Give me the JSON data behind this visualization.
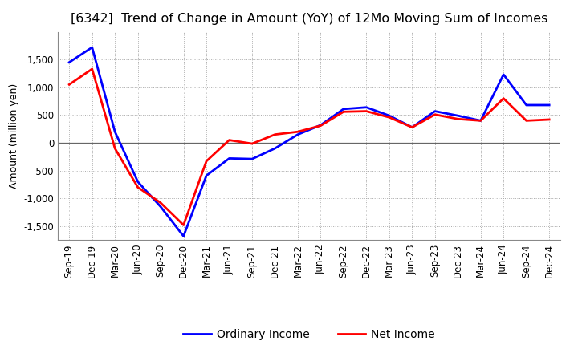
{
  "title": "[6342]  Trend of Change in Amount (YoY) of 12Mo Moving Sum of Incomes",
  "ylabel": "Amount (million yen)",
  "background_color": "#ffffff",
  "grid_color": "#aaaaaa",
  "x_labels": [
    "Sep-19",
    "Dec-19",
    "Mar-20",
    "Jun-20",
    "Sep-20",
    "Dec-20",
    "Mar-21",
    "Jun-21",
    "Sep-21",
    "Dec-21",
    "Mar-22",
    "Jun-22",
    "Sep-22",
    "Dec-22",
    "Mar-23",
    "Jun-23",
    "Sep-23",
    "Dec-23",
    "Mar-24",
    "Jun-24",
    "Sep-24",
    "Dec-24"
  ],
  "ordinary_income": [
    1450,
    1720,
    200,
    -700,
    -1150,
    -1680,
    -590,
    -280,
    -290,
    -100,
    150,
    320,
    610,
    640,
    490,
    280,
    570,
    490,
    400,
    1230,
    680,
    680
  ],
  "net_income": [
    1050,
    1330,
    -100,
    -800,
    -1080,
    -1480,
    -330,
    50,
    -15,
    150,
    200,
    310,
    560,
    570,
    460,
    280,
    510,
    430,
    400,
    800,
    400,
    420
  ],
  "ordinary_color": "#0000ff",
  "net_color": "#ff0000",
  "ylim": [
    -1750,
    2000
  ],
  "yticks": [
    -1500,
    -1000,
    -500,
    0,
    500,
    1000,
    1500
  ],
  "line_width": 2.0,
  "title_fontsize": 11.5,
  "legend_fontsize": 10,
  "tick_fontsize": 8.5,
  "ylabel_fontsize": 9
}
